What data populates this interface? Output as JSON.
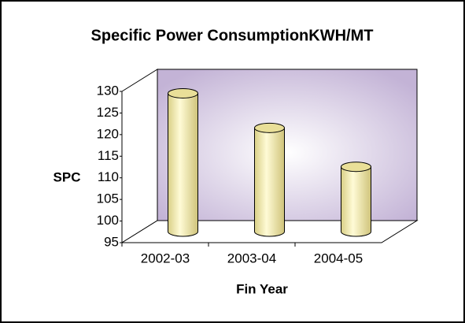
{
  "chart_data": {
    "type": "bar",
    "title": "Specific Power ConsumptionKWH/MT",
    "x_label": "Fin Year",
    "y_label": "SPC",
    "categories": [
      "2002-03",
      "2003-04",
      "2004-05"
    ],
    "values": [
      127,
      119,
      110
    ],
    "color": "#f2eaa8",
    "ylim": [
      95,
      130
    ],
    "yticks": [
      95,
      100,
      105,
      110,
      115,
      120,
      125,
      130
    ]
  }
}
